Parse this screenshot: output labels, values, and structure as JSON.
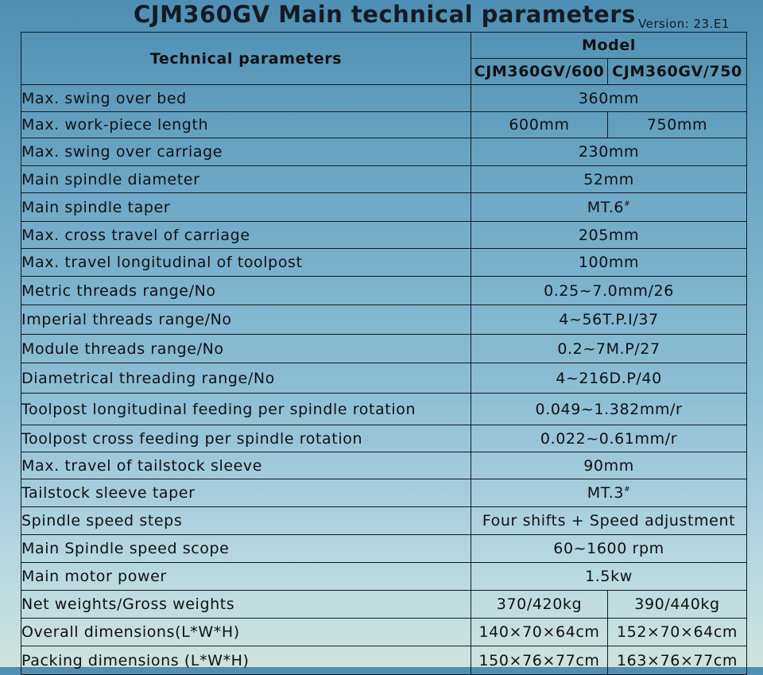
{
  "title": "CJM360GV Main technical parameters",
  "version": "Version: 23.E1",
  "header": {
    "params_label": "Technical parameters",
    "model_label": "Model",
    "models": [
      "CJM360GV/600",
      "CJM360GV/750"
    ]
  },
  "rows": [
    {
      "label": "Max. swing over bed",
      "value": "360mm"
    },
    {
      "label": "Max. work-piece length",
      "values": [
        "600mm",
        "750mm"
      ]
    },
    {
      "label": "Max. swing over carriage",
      "value": "230mm"
    },
    {
      "label": "Main spindle diameter",
      "value": "52mm"
    },
    {
      "label": "Main spindle taper",
      "value": "MT.6",
      "sup": "#"
    },
    {
      "label": "Max. cross travel of carriage",
      "value": "205mm"
    },
    {
      "label": "Max. travel longitudinal of toolpost",
      "value": "100mm"
    },
    {
      "label": "Metric threads range/No",
      "value": "0.25~7.0mm/26"
    },
    {
      "label": "Imperial threads range/No",
      "value": "4~56T.P.I/37"
    },
    {
      "label": "Module threads range/No",
      "value": "0.2~7M.P/27"
    },
    {
      "label": "Diametrical threading range/No",
      "value": "4~216D.P/40"
    },
    {
      "label": "Toolpost longitudinal feeding per spindle rotation",
      "value": "0.049~1.382mm/r"
    },
    {
      "label": "Toolpost cross feeding per spindle rotation",
      "value": "0.022~0.61mm/r"
    },
    {
      "label": "Max. travel of tailstock sleeve",
      "value": "90mm"
    },
    {
      "label": "Tailstock sleeve taper",
      "value": "MT.3",
      "sup": "#"
    },
    {
      "label": "Spindle speed steps",
      "value": "Four shifts + Speed adjustment"
    },
    {
      "label": "Main Spindle speed scope",
      "value": "60~1600 rpm"
    },
    {
      "label": "Main motor power",
      "value": "1.5kw"
    },
    {
      "label": "Net weights/Gross weights",
      "values": [
        "370/420kg",
        "390/440kg"
      ]
    },
    {
      "label": "Overall dimensions(L*W*H)",
      "values": [
        "140×70×64cm",
        "152×70×64cm"
      ]
    },
    {
      "label": "Packing dimensions (L*W*H)",
      "values": [
        "150×76×77cm",
        "163×76×77cm"
      ]
    }
  ]
}
